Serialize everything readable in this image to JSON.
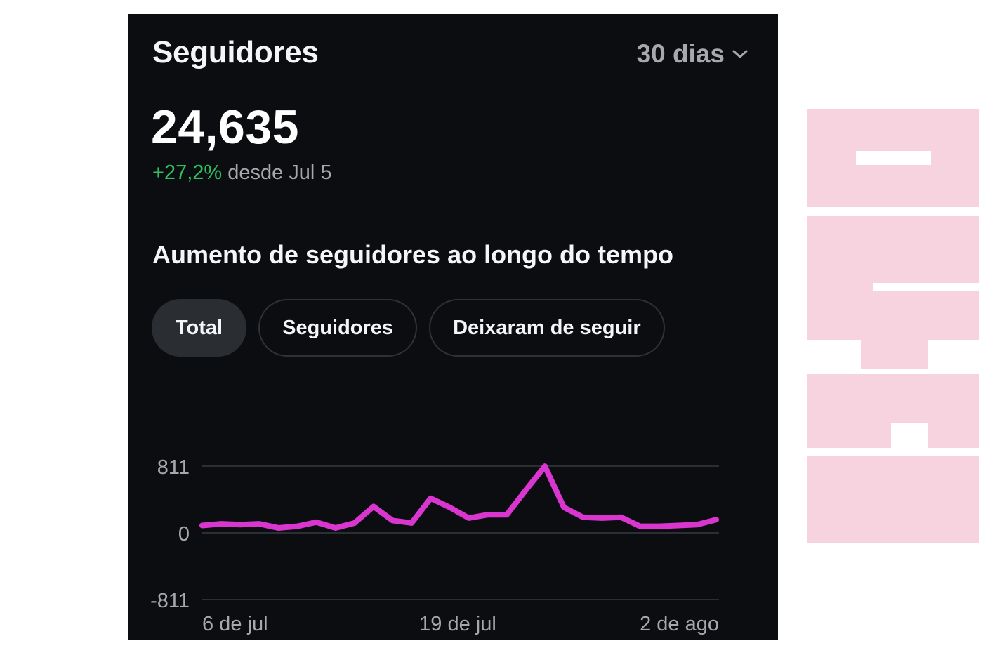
{
  "header": {
    "title": "Seguidores",
    "range_label": "30 dias"
  },
  "summary": {
    "total": "24,635",
    "change_pct": "+27,2%",
    "change_label": "desde Jul 5"
  },
  "section": {
    "title": "Aumento de seguidores ao longo do tempo"
  },
  "filters": [
    {
      "label": "Total",
      "active": true
    },
    {
      "label": "Seguidores",
      "active": false
    },
    {
      "label": "Deixaram de seguir",
      "active": false
    }
  ],
  "colors": {
    "background": "#0b0d10",
    "line": "#d836cf",
    "positive": "#2fbf5c",
    "watermark": "#f7d3df"
  },
  "watermark_text": "AFTER",
  "chart_data": {
    "type": "line",
    "yticks": [
      "811",
      "0",
      "-811"
    ],
    "ylim": [
      -811,
      811
    ],
    "xtick_labels": [
      "6 de jul",
      "19 de jul",
      "2 de ago"
    ],
    "grid": true,
    "series": [
      {
        "values": [
          90,
          110,
          100,
          110,
          60,
          80,
          130,
          60,
          120,
          320,
          150,
          120,
          420,
          310,
          180,
          220,
          220,
          520,
          810,
          310,
          190,
          180,
          190,
          80,
          80,
          90,
          100,
          160
        ]
      }
    ]
  }
}
